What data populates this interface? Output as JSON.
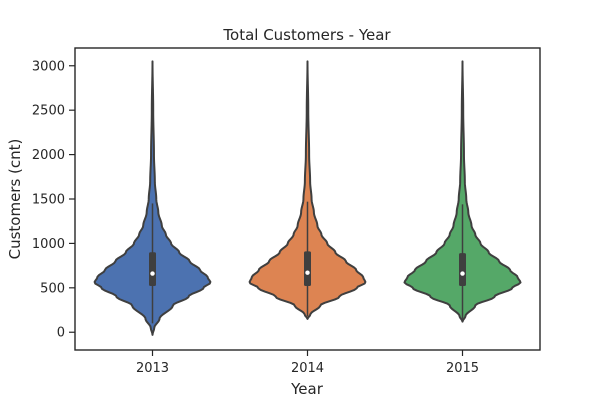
{
  "chart_data": {
    "type": "violin",
    "title": "Total Customers - Year",
    "xlabel": "Year",
    "ylabel": "Customers (cnt)",
    "categories": [
      "2013",
      "2014",
      "2015"
    ],
    "ylim": [
      -200,
      3200
    ],
    "yticks": [
      0,
      500,
      1000,
      1500,
      2000,
      2500,
      3000
    ],
    "grid": false,
    "colors": [
      "#4c72b0",
      "#dd8452",
      "#55a868"
    ],
    "outline_color": "#3f3f3f",
    "series": [
      {
        "category": "2013",
        "min": -30,
        "max": 3050,
        "q1": 520,
        "median": 660,
        "q3": 900,
        "whisker_low": 100,
        "whisker_high": 1450,
        "density": [
          [
            -30,
            0.0
          ],
          [
            50,
            0.03
          ],
          [
            150,
            0.12
          ],
          [
            300,
            0.35
          ],
          [
            400,
            0.62
          ],
          [
            500,
            0.88
          ],
          [
            560,
            1.0
          ],
          [
            620,
            0.95
          ],
          [
            700,
            0.82
          ],
          [
            800,
            0.64
          ],
          [
            900,
            0.46
          ],
          [
            1000,
            0.32
          ],
          [
            1100,
            0.23
          ],
          [
            1200,
            0.16
          ],
          [
            1350,
            0.1
          ],
          [
            1500,
            0.065
          ],
          [
            1700,
            0.04
          ],
          [
            2000,
            0.025
          ],
          [
            2500,
            0.012
          ],
          [
            3050,
            0.0
          ]
        ]
      },
      {
        "category": "2014",
        "min": 150,
        "max": 3050,
        "q1": 520,
        "median": 670,
        "q3": 910,
        "whisker_low": 180,
        "whisker_high": 1470,
        "density": [
          [
            150,
            0.0
          ],
          [
            200,
            0.05
          ],
          [
            300,
            0.22
          ],
          [
            400,
            0.55
          ],
          [
            500,
            0.85
          ],
          [
            560,
            1.0
          ],
          [
            620,
            0.96
          ],
          [
            700,
            0.84
          ],
          [
            800,
            0.66
          ],
          [
            900,
            0.48
          ],
          [
            1000,
            0.34
          ],
          [
            1100,
            0.24
          ],
          [
            1200,
            0.17
          ],
          [
            1350,
            0.11
          ],
          [
            1500,
            0.07
          ],
          [
            1700,
            0.045
          ],
          [
            2000,
            0.028
          ],
          [
            2500,
            0.013
          ],
          [
            3050,
            0.0
          ]
        ]
      },
      {
        "category": "2015",
        "min": 120,
        "max": 3050,
        "q1": 520,
        "median": 660,
        "q3": 890,
        "whisker_low": 150,
        "whisker_high": 1440,
        "density": [
          [
            120,
            0.0
          ],
          [
            180,
            0.05
          ],
          [
            300,
            0.22
          ],
          [
            400,
            0.55
          ],
          [
            500,
            0.86
          ],
          [
            560,
            1.0
          ],
          [
            620,
            0.95
          ],
          [
            700,
            0.82
          ],
          [
            800,
            0.63
          ],
          [
            900,
            0.45
          ],
          [
            1000,
            0.31
          ],
          [
            1100,
            0.22
          ],
          [
            1200,
            0.155
          ],
          [
            1350,
            0.1
          ],
          [
            1500,
            0.065
          ],
          [
            1700,
            0.04
          ],
          [
            2000,
            0.025
          ],
          [
            2500,
            0.012
          ],
          [
            3050,
            0.0
          ]
        ]
      }
    ]
  }
}
